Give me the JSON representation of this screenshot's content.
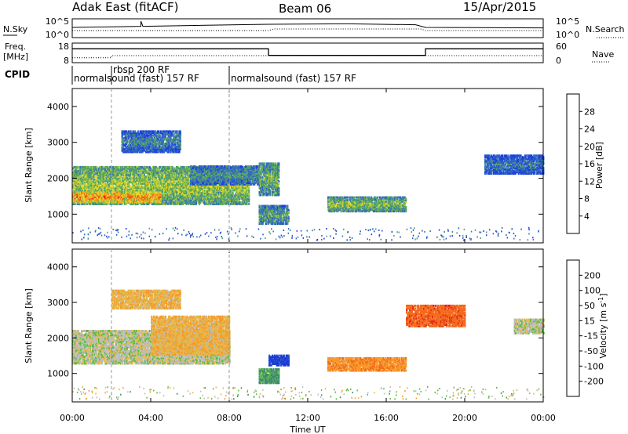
{
  "header": {
    "radar": "Adak East (fitACF)",
    "beam": "Beam 06",
    "date": "15/Apr/2015"
  },
  "noise_panel": {
    "left_label": "N.Sky",
    "right_label": "N.Search",
    "left_ticks": [
      "10^5",
      "10^0"
    ],
    "right_ticks": [
      "10^5",
      "10^0"
    ]
  },
  "freq_panel": {
    "left_label_1": "Freq.",
    "left_label_2": "[MHz]",
    "right_label": "Nave",
    "left_ticks": [
      "18",
      "8"
    ],
    "right_ticks": [
      "60",
      "0"
    ]
  },
  "cpid_panel": {
    "label": "CPID",
    "entries": [
      {
        "start": 0,
        "text": "normalsound (fast) 157 RF"
      },
      {
        "start": 2,
        "text": "rbsp 200 RF"
      },
      {
        "start": 8,
        "text": "normalsound (fast) 157 RF"
      }
    ]
  },
  "chart_data": [
    {
      "type": "line",
      "title": "N.Sky / N.Search",
      "x_unit": "hours UT",
      "xlim": [
        0,
        24
      ],
      "series": [
        {
          "name": "N.Sky",
          "x": [
            0,
            3.5,
            3.5,
            3.6,
            10,
            14,
            17.5,
            18,
            24
          ],
          "y": [
            0.55,
            0.62,
            0.95,
            0.62,
            0.75,
            0.78,
            0.72,
            0.55,
            0.52
          ]
        }
      ]
    },
    {
      "type": "line",
      "title": "Freq. [MHz] / Nave",
      "x_unit": "hours UT",
      "xlim": [
        0,
        24
      ],
      "series": [
        {
          "name": "Freq. [MHz]",
          "x": [
            0,
            10,
            10,
            18,
            18,
            24
          ],
          "y": [
            15.5,
            15.5,
            11.5,
            11.5,
            15.5,
            15.5
          ]
        },
        {
          "name": "Nave",
          "x": [
            0,
            2,
            2,
            24
          ],
          "y": [
            12,
            12,
            20,
            20
          ]
        }
      ]
    },
    {
      "type": "heatmap",
      "title": "Power",
      "xlabel": "",
      "ylabel": "Slant Range [km]",
      "xlim": [
        0,
        24
      ],
      "ylim": [
        200,
        4500
      ],
      "y_ticks": [
        1000,
        2000,
        3000,
        4000
      ],
      "colorbar": {
        "label": "Power [dB]",
        "min": 0,
        "max": 32,
        "ticks": [
          "4",
          "8",
          "12",
          "16",
          "20",
          "24",
          "28"
        ]
      },
      "regions": [
        {
          "t0": 0.0,
          "t1": 9.0,
          "r0": 1250,
          "r1": 2300,
          "level": 0.55
        },
        {
          "t0": 0.0,
          "t1": 4.5,
          "r0": 1300,
          "r1": 1600,
          "level": 0.8
        },
        {
          "t0": 2.5,
          "t1": 5.5,
          "r0": 2700,
          "r1": 3300,
          "level": 0.3
        },
        {
          "t0": 6.0,
          "t1": 9.5,
          "r0": 1800,
          "r1": 2300,
          "level": 0.35
        },
        {
          "t0": 9.5,
          "t1": 10.5,
          "r0": 1500,
          "r1": 2400,
          "level": 0.45
        },
        {
          "t0": 9.5,
          "t1": 11.0,
          "r0": 700,
          "r1": 1200,
          "level": 0.4
        },
        {
          "t0": 13.0,
          "t1": 17.0,
          "r0": 1050,
          "r1": 1450,
          "level": 0.5
        },
        {
          "t0": 21.0,
          "t1": 24.0,
          "r0": 2100,
          "r1": 2600,
          "level": 0.25
        }
      ]
    },
    {
      "type": "heatmap",
      "title": "Velocity",
      "xlabel": "Time UT",
      "ylabel": "Slant Range [km]",
      "xlim": [
        0,
        24
      ],
      "ylim": [
        200,
        4500
      ],
      "y_ticks": [
        1000,
        2000,
        3000,
        4000
      ],
      "x_ticks": [
        "00:00",
        "04:00",
        "08:00",
        "12:00",
        "16:00",
        "20:00",
        "00:00"
      ],
      "colorbar": {
        "label": "Velocity [m s^-1]",
        "min": -250,
        "max": 250,
        "ticks": [
          "200",
          "100",
          "50",
          "15",
          "-15",
          "-50",
          "-100",
          "-200"
        ]
      },
      "regions": [
        {
          "t0": 0.0,
          "t1": 8.0,
          "r0": 1250,
          "r1": 2200,
          "velocity": 0
        },
        {
          "t0": 4.0,
          "t1": 8.0,
          "r0": 1500,
          "r1": 2600,
          "velocity": -40
        },
        {
          "t0": 2.0,
          "t1": 5.5,
          "r0": 2800,
          "r1": 3300,
          "velocity": -40
        },
        {
          "t0": 10.0,
          "t1": 11.0,
          "r0": 1200,
          "r1": 1500,
          "velocity": 220
        },
        {
          "t0": 9.5,
          "t1": 10.5,
          "r0": 700,
          "r1": 1100,
          "velocity": 60
        },
        {
          "t0": 13.0,
          "t1": 17.0,
          "r0": 1050,
          "r1": 1400,
          "velocity": -90
        },
        {
          "t0": 17.0,
          "t1": 20.0,
          "r0": 2300,
          "r1": 2900,
          "velocity": -180
        },
        {
          "t0": 22.5,
          "t1": 24.0,
          "r0": 2100,
          "r1": 2500,
          "velocity": 0
        }
      ]
    }
  ]
}
